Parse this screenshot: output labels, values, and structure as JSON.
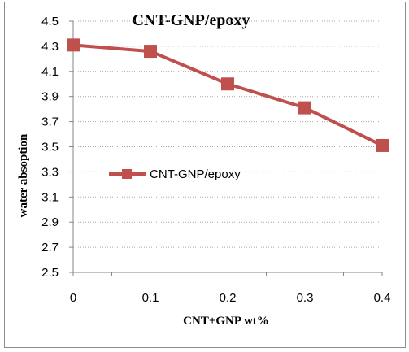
{
  "chart_data": {
    "type": "line",
    "title": "CNT-GNP/epoxy",
    "xlabel": "CNT+GNP  wt%",
    "ylabel": "water absoption",
    "x": [
      0,
      0.1,
      0.2,
      0.3,
      0.4
    ],
    "x_tick_labels": [
      "0",
      "0.1",
      "0.2",
      "0.3",
      "0.4"
    ],
    "y_tick_labels": [
      "2.5",
      "2.7",
      "2.9",
      "3.1",
      "3.3",
      "3.5",
      "3.7",
      "3.9",
      "4.1",
      "4.3",
      "4.5"
    ],
    "xlim": [
      0,
      0.4
    ],
    "ylim": [
      2.5,
      4.5
    ],
    "y_ticks": [
      2.5,
      2.7,
      2.9,
      3.1,
      3.3,
      3.5,
      3.7,
      3.9,
      4.1,
      4.3,
      4.5
    ],
    "grid": "horizontal dotted",
    "legend_position": "center-left",
    "series": [
      {
        "name": "CNT-GNP/epoxy",
        "values": [
          4.31,
          4.26,
          4.0,
          3.81,
          3.51
        ],
        "color": "#c0504d",
        "marker": "square"
      }
    ]
  }
}
